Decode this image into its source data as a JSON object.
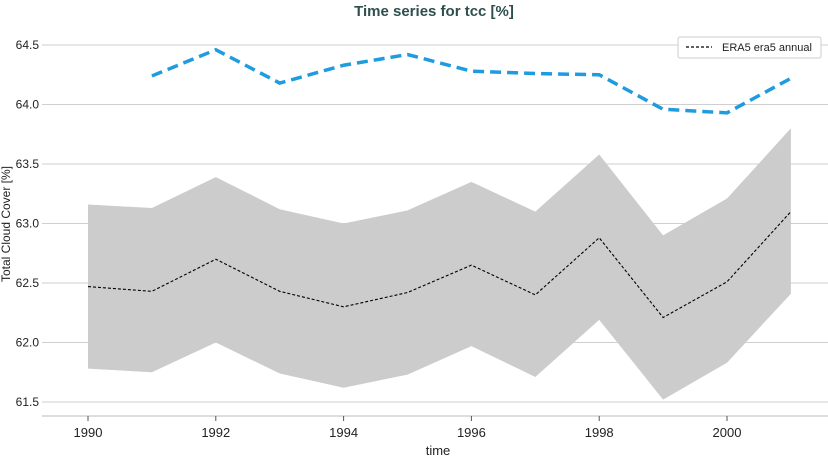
{
  "chart_data": {
    "type": "line",
    "title": "Time series for tcc [%]",
    "xlabel": "time",
    "ylabel": "Total Cloud Cover [%]",
    "xlim": [
      1989.3,
      2001.6
    ],
    "ylim": [
      61.45,
      64.6
    ],
    "xticks": [
      1990,
      1992,
      1994,
      1996,
      1998,
      2000
    ],
    "yticks": [
      61.5,
      62.0,
      62.5,
      63.0,
      63.5,
      64.0,
      64.5
    ],
    "ytick_labels": [
      "61.5",
      "62.0",
      "62.5",
      "63.0",
      "63.5",
      "64.0",
      "64.5"
    ],
    "grid": "horizontal",
    "legend_position": "top-right",
    "colors": {
      "mean": "#000000",
      "band": "#cccccc",
      "blue": "#1f9be0"
    },
    "series": [
      {
        "name": "ERA5 era5 annual",
        "style": "dashed-black",
        "x": [
          1990,
          1991,
          1992,
          1993,
          1994,
          1995,
          1996,
          1997,
          1998,
          1999,
          2000,
          2001
        ],
        "values": [
          62.47,
          62.43,
          62.7,
          62.43,
          62.3,
          62.42,
          62.65,
          62.4,
          62.88,
          62.21,
          62.51,
          63.1
        ],
        "band_upper": [
          63.16,
          63.13,
          63.39,
          63.12,
          63.0,
          63.11,
          63.35,
          63.1,
          63.58,
          62.9,
          63.21,
          63.8
        ],
        "band_lower": [
          61.78,
          61.75,
          62.0,
          61.74,
          61.62,
          61.73,
          61.97,
          61.71,
          62.19,
          61.52,
          61.83,
          62.41
        ]
      },
      {
        "style": "dashed-blue",
        "x": [
          1991,
          1992,
          1993,
          1994,
          1995,
          1996,
          1997,
          1998,
          1999,
          2000,
          2001
        ],
        "values": [
          64.24,
          64.46,
          64.18,
          64.33,
          64.42,
          64.28,
          64.26,
          64.25,
          63.96,
          63.93,
          64.22
        ]
      }
    ]
  }
}
